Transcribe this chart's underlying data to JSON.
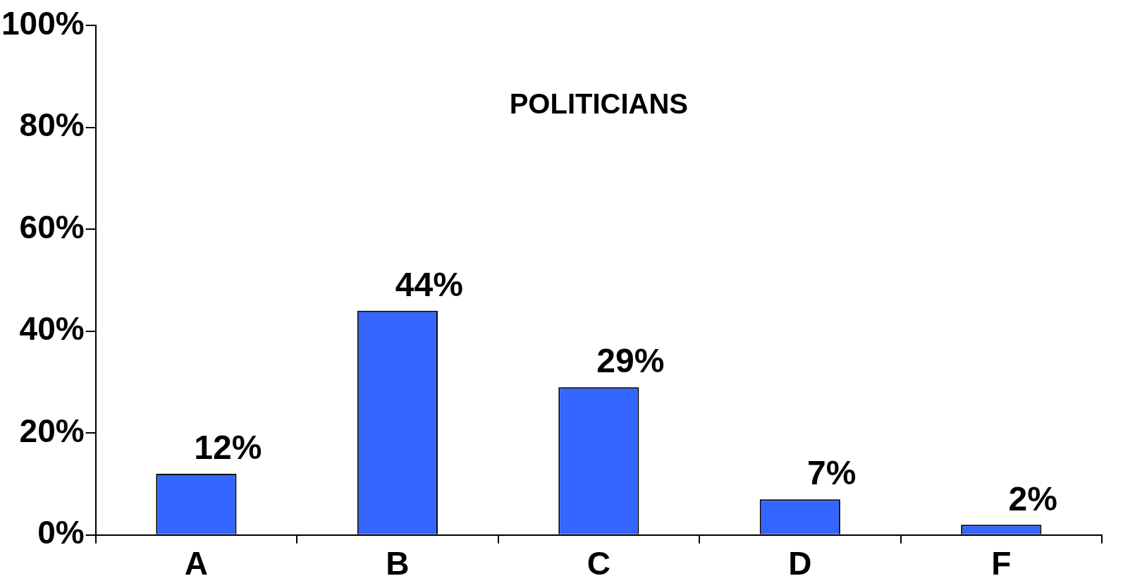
{
  "chart_data": {
    "type": "bar",
    "title": "POLITICIANS",
    "categories": [
      "A",
      "B",
      "C",
      "D",
      "F"
    ],
    "values": [
      12,
      44,
      29,
      7,
      2
    ],
    "value_labels": [
      "12%",
      "44%",
      "29%",
      "7%",
      "2%"
    ],
    "color": "#3366ff",
    "ylim": [
      0,
      100
    ],
    "yticks": [
      {
        "value": 0,
        "label": "0%"
      },
      {
        "value": 20,
        "label": "20%"
      },
      {
        "value": 40,
        "label": "40%"
      },
      {
        "value": 60,
        "label": "60%"
      },
      {
        "value": 80,
        "label": "80%"
      },
      {
        "value": 100,
        "label": "100%"
      }
    ],
    "grid": false,
    "legend": false
  }
}
